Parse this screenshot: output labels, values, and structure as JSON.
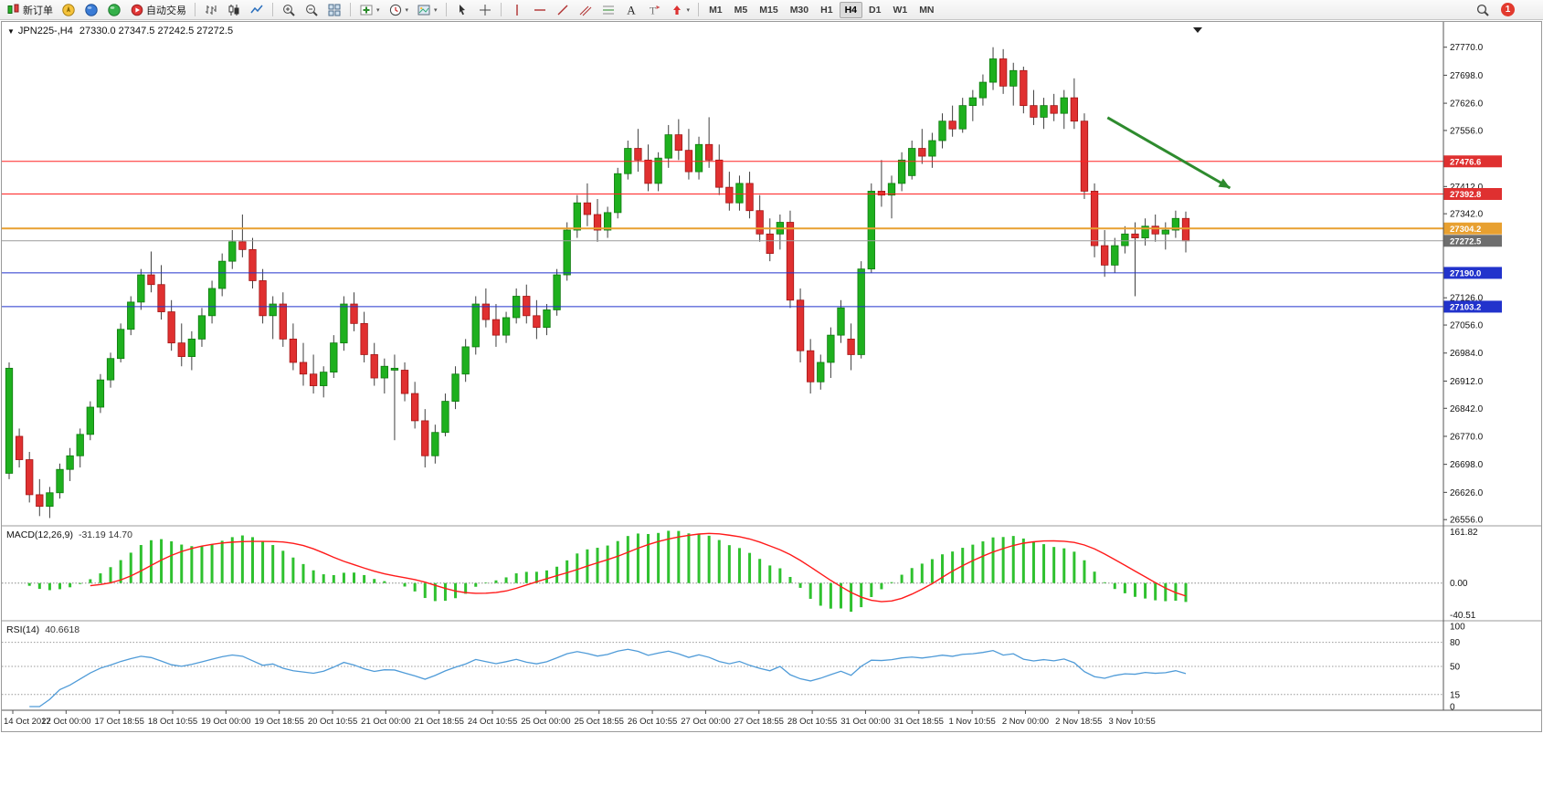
{
  "toolbar": {
    "groups": [
      {
        "name": "trade",
        "items": [
          {
            "name": "new-order",
            "icon": "new-order-icon",
            "label": "新订单"
          },
          {
            "name": "charts-community",
            "icon": "compass-icon"
          },
          {
            "name": "market-watch",
            "icon": "market-watch-icon"
          },
          {
            "name": "navigator",
            "icon": "navigator-icon"
          },
          {
            "name": "autotrading",
            "icon": "autotrading-icon",
            "label": "自动交易"
          }
        ]
      },
      {
        "name": "chart-type",
        "items": [
          {
            "name": "bar-chart",
            "icon": "bar-chart-icon"
          },
          {
            "name": "candlestick-chart",
            "icon": "candles-icon"
          },
          {
            "name": "line-chart",
            "icon": "line-chart-icon"
          }
        ]
      },
      {
        "name": "zoom",
        "items": [
          {
            "name": "zoom-in",
            "icon": "zoom-in-icon"
          },
          {
            "name": "zoom-out",
            "icon": "zoom-out-icon"
          },
          {
            "name": "tile-windows",
            "icon": "tile-windows-icon"
          }
        ]
      },
      {
        "name": "chart-tools",
        "items": [
          {
            "name": "indicators",
            "icon": "indicators-icon",
            "dropdown": true
          },
          {
            "name": "periods",
            "icon": "periods-icon",
            "dropdown": true
          },
          {
            "name": "templates",
            "icon": "templates-icon",
            "dropdown": true
          }
        ]
      },
      {
        "name": "pointer",
        "items": [
          {
            "name": "cursor",
            "icon": "cursor-icon"
          },
          {
            "name": "crosshair",
            "icon": "crosshair-icon"
          }
        ]
      },
      {
        "name": "drawing",
        "items": [
          {
            "name": "vertical-line",
            "icon": "vline-icon"
          },
          {
            "name": "horizontal-line",
            "icon": "hline-icon"
          },
          {
            "name": "trendline",
            "icon": "trendline-icon"
          },
          {
            "name": "equidistant-channel",
            "icon": "channel-icon"
          },
          {
            "name": "fibonacci-retracement",
            "icon": "fibo-icon"
          },
          {
            "name": "text",
            "icon": "text-icon"
          },
          {
            "name": "text-label",
            "icon": "label-icon"
          },
          {
            "name": "arrows",
            "icon": "shapes-icon",
            "dropdown": true
          }
        ]
      }
    ],
    "timeframes": [
      "M1",
      "M5",
      "M15",
      "M30",
      "H1",
      "H4",
      "D1",
      "W1",
      "MN"
    ],
    "active_timeframe": "H4",
    "notification_count": "1"
  },
  "chart": {
    "symbol_period": "JPN225-,H4",
    "ohlc_text": "27330.0 27347.5 27242.5 27272.5"
  },
  "colors": {
    "bull": "#1eb01e",
    "bull_border": "#0e7a0e",
    "bear": "#e03030",
    "bear_border": "#a31515",
    "wick": "#3f3f3f",
    "macd_hist": "#2fc12f",
    "macd_signal": "#ff1a1a",
    "rsi_line": "#4f9bd8",
    "arrow_green": "#2e8b2e"
  },
  "chart_data": {
    "type": "candlestick",
    "title": "JPN225-,H4",
    "timeframe": "H4",
    "ohlc_current": {
      "open": 27330.0,
      "high": 27347.5,
      "low": 27242.5,
      "close": 27272.5
    },
    "candles": [
      [
        26675,
        26960,
        26660,
        26945
      ],
      [
        26770,
        26790,
        26690,
        26710
      ],
      [
        26710,
        26730,
        26600,
        26620
      ],
      [
        26620,
        26660,
        26565,
        26590
      ],
      [
        26590,
        26640,
        26560,
        26625
      ],
      [
        26625,
        26700,
        26610,
        26685
      ],
      [
        26685,
        26740,
        26655,
        26720
      ],
      [
        26720,
        26790,
        26690,
        26775
      ],
      [
        26775,
        26860,
        26760,
        26845
      ],
      [
        26845,
        26930,
        26830,
        26915
      ],
      [
        26915,
        26985,
        26895,
        26970
      ],
      [
        26970,
        27060,
        26960,
        27045
      ],
      [
        27045,
        27130,
        27030,
        27115
      ],
      [
        27115,
        27200,
        27095,
        27185
      ],
      [
        27185,
        27245,
        27140,
        27160
      ],
      [
        27160,
        27210,
        27070,
        27090
      ],
      [
        27090,
        27120,
        26990,
        27010
      ],
      [
        27010,
        27060,
        26950,
        26975
      ],
      [
        26975,
        27040,
        26940,
        27020
      ],
      [
        27020,
        27100,
        27000,
        27080
      ],
      [
        27080,
        27170,
        27060,
        27150
      ],
      [
        27150,
        27240,
        27130,
        27220
      ],
      [
        27220,
        27300,
        27200,
        27270
      ],
      [
        27270,
        27340,
        27230,
        27250
      ],
      [
        27250,
        27280,
        27150,
        27170
      ],
      [
        27170,
        27200,
        27060,
        27080
      ],
      [
        27080,
        27130,
        27020,
        27110
      ],
      [
        27110,
        27140,
        27000,
        27020
      ],
      [
        27020,
        27060,
        26940,
        26960
      ],
      [
        26960,
        27010,
        26900,
        26930
      ],
      [
        26930,
        26980,
        26880,
        26900
      ],
      [
        26900,
        26950,
        26870,
        26935
      ],
      [
        26935,
        27030,
        26920,
        27010
      ],
      [
        27010,
        27130,
        26990,
        27110
      ],
      [
        27110,
        27140,
        27040,
        27060
      ],
      [
        27060,
        27090,
        26960,
        26980
      ],
      [
        26980,
        27010,
        26900,
        26920
      ],
      [
        26920,
        26970,
        26880,
        26950
      ],
      [
        26940,
        26980,
        26760,
        26945
      ],
      [
        26940,
        26960,
        26860,
        26880
      ],
      [
        26880,
        26910,
        26790,
        26810
      ],
      [
        26810,
        26840,
        26690,
        26720
      ],
      [
        26720,
        26800,
        26700,
        26780
      ],
      [
        26780,
        26880,
        26770,
        26860
      ],
      [
        26860,
        26950,
        26840,
        26930
      ],
      [
        26930,
        27020,
        26910,
        27000
      ],
      [
        27000,
        27130,
        26980,
        27110
      ],
      [
        27110,
        27150,
        27050,
        27070
      ],
      [
        27070,
        27110,
        27000,
        27030
      ],
      [
        27030,
        27090,
        27010,
        27075
      ],
      [
        27075,
        27150,
        27060,
        27130
      ],
      [
        27130,
        27160,
        27060,
        27080
      ],
      [
        27080,
        27120,
        27020,
        27050
      ],
      [
        27050,
        27110,
        27030,
        27095
      ],
      [
        27095,
        27200,
        27080,
        27185
      ],
      [
        27185,
        27320,
        27170,
        27300
      ],
      [
        27300,
        27390,
        27280,
        27370
      ],
      [
        27370,
        27420,
        27310,
        27340
      ],
      [
        27340,
        27380,
        27270,
        27300
      ],
      [
        27300,
        27360,
        27280,
        27345
      ],
      [
        27345,
        27460,
        27330,
        27445
      ],
      [
        27445,
        27530,
        27430,
        27510
      ],
      [
        27510,
        27560,
        27450,
        27480
      ],
      [
        27480,
        27520,
        27400,
        27420
      ],
      [
        27420,
        27500,
        27400,
        27485
      ],
      [
        27485,
        27570,
        27460,
        27545
      ],
      [
        27545,
        27585,
        27480,
        27505
      ],
      [
        27505,
        27560,
        27430,
        27450
      ],
      [
        27450,
        27540,
        27430,
        27520
      ],
      [
        27520,
        27590,
        27460,
        27480
      ],
      [
        27480,
        27520,
        27390,
        27410
      ],
      [
        27410,
        27450,
        27350,
        27370
      ],
      [
        27370,
        27440,
        27350,
        27420
      ],
      [
        27420,
        27450,
        27330,
        27350
      ],
      [
        27350,
        27390,
        27270,
        27290
      ],
      [
        27290,
        27330,
        27220,
        27240
      ],
      [
        27290,
        27340,
        27250,
        27320
      ],
      [
        27320,
        27350,
        27100,
        27120
      ],
      [
        27120,
        27150,
        26960,
        26990
      ],
      [
        26990,
        27020,
        26880,
        26910
      ],
      [
        26910,
        26980,
        26890,
        26960
      ],
      [
        26960,
        27050,
        26920,
        27030
      ],
      [
        27030,
        27120,
        27010,
        27100
      ],
      [
        27020,
        27060,
        26940,
        26980
      ],
      [
        26980,
        27220,
        26970,
        27200
      ],
      [
        27200,
        27420,
        27190,
        27400
      ],
      [
        27400,
        27480,
        27360,
        27390
      ],
      [
        27390,
        27440,
        27330,
        27420
      ],
      [
        27420,
        27500,
        27400,
        27480
      ],
      [
        27440,
        27530,
        27430,
        27510
      ],
      [
        27510,
        27560,
        27470,
        27490
      ],
      [
        27490,
        27550,
        27460,
        27530
      ],
      [
        27530,
        27600,
        27510,
        27580
      ],
      [
        27580,
        27620,
        27540,
        27560
      ],
      [
        27560,
        27640,
        27550,
        27620
      ],
      [
        27620,
        27660,
        27580,
        27640
      ],
      [
        27640,
        27700,
        27620,
        27680
      ],
      [
        27680,
        27770,
        27660,
        27740
      ],
      [
        27740,
        27765,
        27650,
        27670
      ],
      [
        27670,
        27730,
        27620,
        27710
      ],
      [
        27710,
        27720,
        27600,
        27620
      ],
      [
        27620,
        27660,
        27570,
        27590
      ],
      [
        27590,
        27640,
        27560,
        27620
      ],
      [
        27620,
        27650,
        27580,
        27600
      ],
      [
        27600,
        27660,
        27560,
        27640
      ],
      [
        27640,
        27690,
        27560,
        27580
      ],
      [
        27580,
        27600,
        27380,
        27400
      ],
      [
        27400,
        27420,
        27230,
        27260
      ],
      [
        27260,
        27300,
        27180,
        27210
      ],
      [
        27210,
        27280,
        27190,
        27260
      ],
      [
        27260,
        27310,
        27240,
        27290
      ],
      [
        27290,
        27320,
        27130,
        27280
      ],
      [
        27280,
        27330,
        27260,
        27310
      ],
      [
        27310,
        27340,
        27270,
        27290
      ],
      [
        27290,
        27320,
        27250,
        27300
      ],
      [
        27300,
        27350,
        27280,
        27330
      ],
      [
        27330,
        27347.5,
        27242.5,
        27272.5
      ]
    ],
    "price_axis": {
      "ylim": [
        26540,
        27835
      ],
      "ticks": [
        "27770.0",
        "27698.0",
        "27626.0",
        "27556.0",
        "27412.0",
        "27342.0",
        "27126.0",
        "27056.0",
        "26984.0",
        "26912.0",
        "26842.0",
        "26770.0",
        "26698.0",
        "26626.0",
        "26556.0"
      ]
    },
    "hlines": [
      {
        "price": 27476.6,
        "label": "27476.6",
        "color": "#ff2222",
        "badge": "#df3030",
        "width": 1
      },
      {
        "price": 27392.8,
        "label": "27392.8",
        "color": "#ff2222",
        "badge": "#df3030",
        "width": 1
      },
      {
        "price": 27304.2,
        "label": "27304.2",
        "color": "#e8a030",
        "badge": "#e8a030",
        "width": 2
      },
      {
        "price": 27272.5,
        "label": "27272.5",
        "color": "#9c9c9c",
        "badge": "#6e6e6e",
        "width": 1
      },
      {
        "price": 27190.0,
        "label": "27190.0",
        "color": "#2233cc",
        "badge": "#2233cc",
        "width": 1
      },
      {
        "price": 27103.2,
        "label": "27103.2",
        "color": "#2233cc",
        "badge": "#2233cc",
        "width": 1
      }
    ],
    "arrow_annotation": {
      "fx1": 0.767,
      "price1": 27589,
      "fx2": 0.852,
      "price2": 27408,
      "color": "#2e8b2e"
    },
    "macd": {
      "label": "MACD(12,26,9)",
      "values_text": "-31.19 14.70",
      "params": [
        12,
        26,
        9
      ],
      "ticks": [
        "161.82",
        "0.00",
        "-40.51"
      ]
    },
    "rsi": {
      "label": "RSI(14)",
      "value_text": "40.6618",
      "period": 14,
      "levels": [
        100,
        80,
        50,
        15,
        0
      ],
      "levels_dashed": [
        80,
        50,
        15
      ]
    },
    "time_axis": [
      "14 Oct 2022",
      "17 Oct 00:00",
      "17 Oct 18:55",
      "18 Oct 10:55",
      "19 Oct 00:00",
      "19 Oct 18:55",
      "20 Oct 10:55",
      "21 Oct 00:00",
      "21 Oct 18:55",
      "24 Oct 10:55",
      "25 Oct 00:00",
      "25 Oct 18:55",
      "26 Oct 10:55",
      "27 Oct 00:00",
      "27 Oct 18:55",
      "28 Oct 10:55",
      "31 Oct 00:00",
      "31 Oct 18:55",
      "1 Nov 10:55",
      "2 Nov 00:00",
      "2 Nov 18:55",
      "3 Nov 10:55"
    ],
    "legend_position": "none",
    "grid": false
  }
}
